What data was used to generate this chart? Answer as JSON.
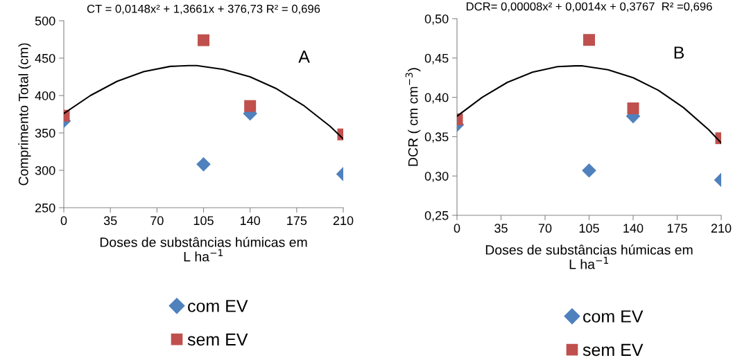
{
  "chart_data": [
    {
      "type": "scatter",
      "xlabel": "Doses de substâncias húmicas em\nL ha$^{−1}$",
      "ylabel": "Comprimento Total (cm)",
      "annotations": [
        "CT = 0,0148x² + 1,3661x + 376,73 R² = 0,696",
        "A"
      ],
      "xlim": [
        0,
        210
      ],
      "xticks": [
        0,
        35,
        70,
        105,
        140,
        175,
        210
      ],
      "ylim": [
        250,
        500
      ],
      "yticks": [
        250,
        300,
        350,
        400,
        450,
        500
      ],
      "grid": false,
      "legend": "bottom",
      "series": [
        {
          "name": "com EV",
          "color": "#4f81bd",
          "marker": "diamond",
          "x": [
            0,
            105,
            140,
            210
          ],
          "values": [
            366,
            308,
            376,
            295
          ]
        },
        {
          "name": "sem EV",
          "color": "#c0504d",
          "marker": "square",
          "x": [
            0,
            105,
            140,
            210
          ],
          "values": [
            373,
            474,
            386,
            348
          ]
        },
        {
          "type": "line",
          "color": "#000000",
          "marker": "none",
          "line_style": "solid",
          "x": [
            0,
            20,
            40,
            60,
            80,
            94,
            100,
            120,
            140,
            160,
            180,
            200,
            210
          ],
          "values": [
            376,
            400,
            419,
            432,
            439,
            440,
            440,
            435,
            425,
            409,
            387,
            359,
            342
          ]
        }
      ]
    },
    {
      "type": "scatter",
      "xlabel": "Doses de substâncias húmicas em\nL ha$^{−1}$",
      "ylabel": "DCR ( cm cm$^{−3}$)",
      "annotations": [
        "DCR= 0,00008x² + 0,0014x + 0,3767  R² =0,696",
        "B"
      ],
      "xlim": [
        0,
        210
      ],
      "xticks": [
        0,
        35,
        70,
        105,
        140,
        175,
        210
      ],
      "ylim": [
        0.25,
        0.5
      ],
      "yticks": [
        {
          "value": 0.25,
          "label": "0,25"
        },
        {
          "value": 0.3,
          "label": "0,30"
        },
        {
          "value": 0.35,
          "label": "0,35"
        },
        {
          "value": 0.4,
          "label": "0,40"
        },
        {
          "value": 0.45,
          "label": "0,45"
        },
        {
          "value": 0.5,
          "label": "0,50"
        }
      ],
      "grid": false,
      "legend": "bottom",
      "series": [
        {
          "name": "com EV",
          "color": "#4f81bd",
          "marker": "diamond",
          "x": [
            0,
            105,
            140,
            210
          ],
          "values": [
            0.365,
            0.307,
            0.376,
            0.295
          ]
        },
        {
          "name": "sem EV",
          "color": "#c0504d",
          "marker": "square",
          "x": [
            0,
            105,
            140,
            210
          ],
          "values": [
            0.372,
            0.473,
            0.386,
            0.348
          ]
        },
        {
          "type": "line",
          "color": "#000000",
          "marker": "none",
          "line_style": "solid",
          "x": [
            0,
            20,
            40,
            60,
            80,
            94,
            100,
            120,
            140,
            160,
            180,
            200,
            210
          ],
          "values": [
            0.376,
            0.4,
            0.419,
            0.432,
            0.439,
            0.44,
            0.44,
            0.435,
            0.425,
            0.409,
            0.387,
            0.359,
            0.342
          ]
        }
      ]
    }
  ]
}
